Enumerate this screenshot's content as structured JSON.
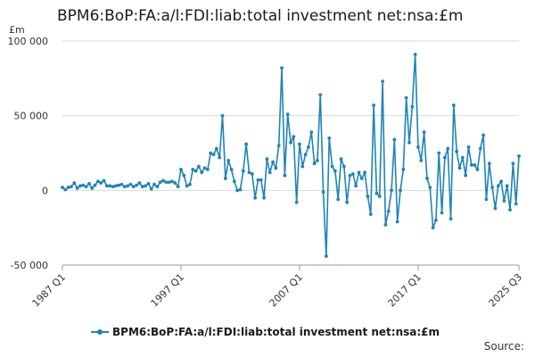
{
  "chart_data": {
    "type": "line",
    "title": "BPM6:BoP:FA:a/l:FDI:liab:total investment net:nsa:£m",
    "yunit": "£m",
    "ylim": [
      -50000,
      100000
    ],
    "yticks": [
      -50000,
      0,
      50000,
      100000
    ],
    "ytick_labels": [
      "-50 000",
      "0",
      "50 000",
      "100 000"
    ],
    "xticks": [
      {
        "label": "1987 Q1",
        "index": 0
      },
      {
        "label": "1997 Q1",
        "index": 40
      },
      {
        "label": "2007 Q1",
        "index": 80
      },
      {
        "label": "2017 Q1",
        "index": 120
      },
      {
        "label": "2025 Q3",
        "index": 154
      }
    ],
    "grid": true,
    "legend_position": "bottom",
    "color": "#1f84b6",
    "series": [
      {
        "name": "BPM6:BoP:FA:a/l:FDI:liab:total investment net:nsa:£m",
        "start": "1987 Q1",
        "values": [
          2000,
          500,
          2000,
          2500,
          5000,
          1500,
          3000,
          3500,
          2500,
          4500,
          1500,
          3500,
          6000,
          5000,
          6500,
          3000,
          3000,
          2500,
          3000,
          3500,
          4000,
          2500,
          3000,
          4000,
          2500,
          3500,
          5000,
          2500,
          3000,
          4500,
          1000,
          4000,
          2500,
          5500,
          6500,
          5500,
          5500,
          6000,
          5000,
          2500,
          14000,
          10000,
          3000,
          4000,
          14000,
          13000,
          16000,
          12000,
          15000,
          14000,
          25000,
          24000,
          28000,
          22000,
          50000,
          8000,
          20000,
          14000,
          6000,
          0,
          500,
          13000,
          31000,
          12000,
          11000,
          -5000,
          7000,
          7000,
          -5000,
          21000,
          12000,
          19000,
          15000,
          30000,
          82000,
          10000,
          51000,
          32000,
          36000,
          -8000,
          31000,
          16000,
          24000,
          29000,
          39000,
          18000,
          20000,
          64000,
          -1000,
          -44000,
          35000,
          16000,
          13000,
          -6000,
          21000,
          16000,
          -8000,
          10000,
          11000,
          3000,
          12000,
          8000,
          12000,
          -4000,
          -16000,
          57000,
          -2000,
          -4000,
          73000,
          -23000,
          -14000,
          0,
          34000,
          -21000,
          0,
          14000,
          62000,
          32000,
          56000,
          91000,
          29000,
          20000,
          39000,
          8000,
          2000,
          -25000,
          -20000,
          25000,
          -15000,
          22000,
          28000,
          -19000,
          57000,
          26000,
          15000,
          22000,
          10000,
          29000,
          17000,
          17000,
          14000,
          28000,
          37000,
          -6000,
          18000,
          2000,
          -12000,
          3000,
          6000,
          -7000,
          3000,
          -13000,
          18000,
          -9000,
          23000
        ]
      }
    ]
  },
  "legend": {
    "label": "BPM6:BoP:FA:a/l:FDI:liab:total investment net:nsa:£m"
  },
  "footer": {
    "source": "Source:"
  }
}
